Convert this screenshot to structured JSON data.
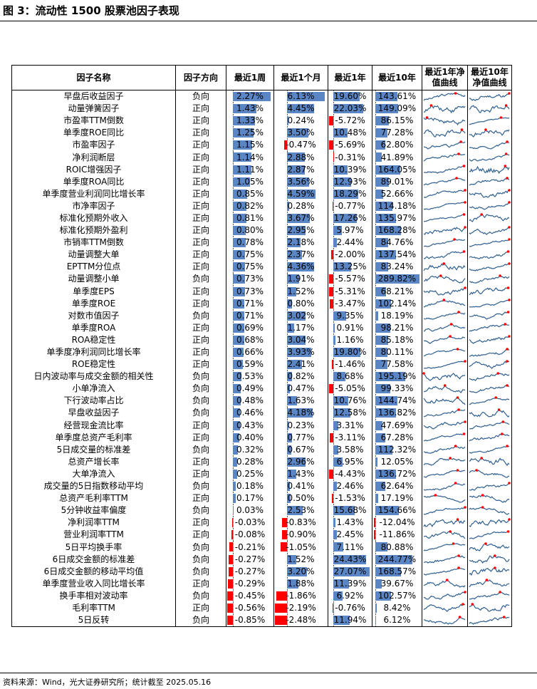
{
  "title": "图 3：流动性 1500 股票池因子表现",
  "source": "资料来源：Wind，光大证券研究所；统计截至 2025.05.16",
  "colors": {
    "pos": "#5b86c5",
    "neg": "#ff0000",
    "line": "#2f5f8f",
    "marker": "#ff0000"
  },
  "headers": {
    "name": "因子名称",
    "dir": "因子方向",
    "w1": "最近1周",
    "m1": "最近1个月",
    "y1": "最近1年",
    "y10": "最近10年",
    "c1": "最近1年净值曲线",
    "c10": "最近10年净值曲线"
  },
  "rows": [
    {
      "name": "早盘后收益因子",
      "dir": "负向",
      "w1": "2.27%",
      "m1": "6.13%",
      "y1": "19.60%",
      "y10": "143.61%"
    },
    {
      "name": "动量弹簧因子",
      "dir": "正向",
      "w1": "1.43%",
      "m1": "4.45%",
      "y1": "22.03%",
      "y10": "149.09%"
    },
    {
      "name": "市盈率TTM倒数",
      "dir": "正向",
      "w1": "1.33%",
      "m1": "0.24%",
      "y1": "-5.72%",
      "y10": "86.15%"
    },
    {
      "name": "单季度ROE同比",
      "dir": "正向",
      "w1": "1.25%",
      "m1": "3.50%",
      "y1": "10.48%",
      "y10": "77.28%"
    },
    {
      "name": "市盈率因子",
      "dir": "正向",
      "w1": "1.15%",
      "m1": "-0.47%",
      "y1": "-5.69%",
      "y10": "62.80%"
    },
    {
      "name": "净利润断层",
      "dir": "正向",
      "w1": "1.14%",
      "m1": "2.88%",
      "y1": "-0.31%",
      "y10": "41.89%"
    },
    {
      "name": "ROIC增强因子",
      "dir": "正向",
      "w1": "1.11%",
      "m1": "2.87%",
      "y1": "10.39%",
      "y10": "164.05%"
    },
    {
      "name": "单季度ROA同比",
      "dir": "正向",
      "w1": "1.05%",
      "m1": "3.56%",
      "y1": "12.93%",
      "y10": "89.01%"
    },
    {
      "name": "单季度营业利润同比增长率",
      "dir": "正向",
      "w1": "0.85%",
      "m1": "4.59%",
      "y1": "18.29%",
      "y10": "52.66%"
    },
    {
      "name": "市净率因子",
      "dir": "正向",
      "w1": "0.82%",
      "m1": "0.28%",
      "y1": "-0.77%",
      "y10": "114.18%"
    },
    {
      "name": "标准化预期外收入",
      "dir": "正向",
      "w1": "0.81%",
      "m1": "3.67%",
      "y1": "17.26%",
      "y10": "135.97%"
    },
    {
      "name": "标准化预期外盈利",
      "dir": "正向",
      "w1": "0.80%",
      "m1": "2.95%",
      "y1": "5.97%",
      "y10": "168.28%"
    },
    {
      "name": "市销率TTM倒数",
      "dir": "正向",
      "w1": "0.78%",
      "m1": "2.18%",
      "y1": "2.44%",
      "y10": "84.76%"
    },
    {
      "name": "动量调整大单",
      "dir": "正向",
      "w1": "0.75%",
      "m1": "2.37%",
      "y1": "-2.00%",
      "y10": "137.54%"
    },
    {
      "name": "EPTTM分位点",
      "dir": "正向",
      "w1": "0.75%",
      "m1": "4.36%",
      "y1": "13.25%",
      "y10": "83.24%"
    },
    {
      "name": "动量调整小单",
      "dir": "负向",
      "w1": "0.73%",
      "m1": "1.91%",
      "y1": "-5.57%",
      "y10": "289.82%"
    },
    {
      "name": "单季度EPS",
      "dir": "正向",
      "w1": "0.73%",
      "m1": "1.52%",
      "y1": "-5.31%",
      "y10": "68.21%"
    },
    {
      "name": "单季度ROE",
      "dir": "正向",
      "w1": "0.71%",
      "m1": "0.80%",
      "y1": "-3.47%",
      "y10": "102.14%"
    },
    {
      "name": "对数市值因子",
      "dir": "负向",
      "w1": "0.71%",
      "m1": "3.02%",
      "y1": "9.35%",
      "y10": "18.19%"
    },
    {
      "name": "单季度ROA",
      "dir": "正向",
      "w1": "0.69%",
      "m1": "1.17%",
      "y1": "0.91%",
      "y10": "98.21%"
    },
    {
      "name": "ROA稳定性",
      "dir": "正向",
      "w1": "0.68%",
      "m1": "3.04%",
      "y1": "1.16%",
      "y10": "85.18%"
    },
    {
      "name": "单季度净利润同比增长率",
      "dir": "正向",
      "w1": "0.66%",
      "m1": "3.93%",
      "y1": "19.80%",
      "y10": "80.11%"
    },
    {
      "name": "ROE稳定性",
      "dir": "正向",
      "w1": "0.59%",
      "m1": "2.41%",
      "y1": "-1.46%",
      "y10": "77.58%"
    },
    {
      "name": "日内波动率与成交金额的相关性",
      "dir": "负向",
      "w1": "0.53%",
      "m1": "0.82%",
      "y1": "8.68%",
      "y10": "195.19%"
    },
    {
      "name": "小单净流入",
      "dir": "负向",
      "w1": "0.49%",
      "m1": "0.47%",
      "y1": "-5.05%",
      "y10": "99.33%"
    },
    {
      "name": "下行波动率占比",
      "dir": "负向",
      "w1": "0.48%",
      "m1": "1.63%",
      "y1": "10.76%",
      "y10": "144.74%"
    },
    {
      "name": "早盘收益因子",
      "dir": "负向",
      "w1": "0.46%",
      "m1": "4.18%",
      "y1": "12.58%",
      "y10": "136.82%"
    },
    {
      "name": "经营现金流比率",
      "dir": "正向",
      "w1": "0.43%",
      "m1": "0.23%",
      "y1": "3.31%",
      "y10": "47.69%"
    },
    {
      "name": "单季度总资产毛利率",
      "dir": "正向",
      "w1": "0.40%",
      "m1": "0.77%",
      "y1": "-3.11%",
      "y10": "67.28%"
    },
    {
      "name": "5日成交量的标准差",
      "dir": "负向",
      "w1": "0.32%",
      "m1": "0.67%",
      "y1": "3.58%",
      "y10": "112.32%"
    },
    {
      "name": "总资产增长率",
      "dir": "正向",
      "w1": "0.28%",
      "m1": "2.96%",
      "y1": "6.95%",
      "y10": "12.05%"
    },
    {
      "name": "大单净流入",
      "dir": "正向",
      "w1": "0.25%",
      "m1": "1.43%",
      "y1": "-4.43%",
      "y10": "136.72%"
    },
    {
      "name": "成交量的5日指数移动平均",
      "dir": "负向",
      "w1": "0.18%",
      "m1": "0.41%",
      "y1": "2.46%",
      "y10": "62.64%"
    },
    {
      "name": "总资产毛利率TTM",
      "dir": "正向",
      "w1": "0.17%",
      "m1": "0.50%",
      "y1": "-1.53%",
      "y10": "17.19%"
    },
    {
      "name": "5分钟收益率偏度",
      "dir": "负向",
      "w1": "0.03%",
      "m1": "2.53%",
      "y1": "15.68%",
      "y10": "154.66%"
    },
    {
      "name": "净利润率TTM",
      "dir": "正向",
      "w1": "-0.03%",
      "m1": "-0.83%",
      "y1": "1.43%",
      "y10": "-12.04%"
    },
    {
      "name": "营业利润率TTM",
      "dir": "正向",
      "w1": "-0.08%",
      "m1": "-0.90%",
      "y1": "2.45%",
      "y10": "-11.86%"
    },
    {
      "name": "5日平均换手率",
      "dir": "负向",
      "w1": "-0.21%",
      "m1": "-1.05%",
      "y1": "7.11%",
      "y10": "80.88%"
    },
    {
      "name": "6日成交金额的标准差",
      "dir": "负向",
      "w1": "-0.27%",
      "m1": "1.52%",
      "y1": "24.43%",
      "y10": "244.77%"
    },
    {
      "name": "6日成交金额的移动平均值",
      "dir": "负向",
      "w1": "-0.27%",
      "m1": "3.20%",
      "y1": "27.07%",
      "y10": "168.57%"
    },
    {
      "name": "单季度营业收入同比增长率",
      "dir": "正向",
      "w1": "-0.29%",
      "m1": "1.88%",
      "y1": "11.39%",
      "y10": "39.67%"
    },
    {
      "name": "换手率相对波动率",
      "dir": "负向",
      "w1": "-0.45%",
      "m1": "-1.86%",
      "y1": "6.92%",
      "y10": "102.57%"
    },
    {
      "name": "毛利率TTM",
      "dir": "正向",
      "w1": "-0.56%",
      "m1": "-2.19%",
      "y1": "-0.76%",
      "y10": "8.42%"
    },
    {
      "name": "5日反转",
      "dir": "负向",
      "w1": "-0.85%",
      "m1": "-2.48%",
      "y1": "11.94%",
      "y10": "6.12%"
    }
  ]
}
